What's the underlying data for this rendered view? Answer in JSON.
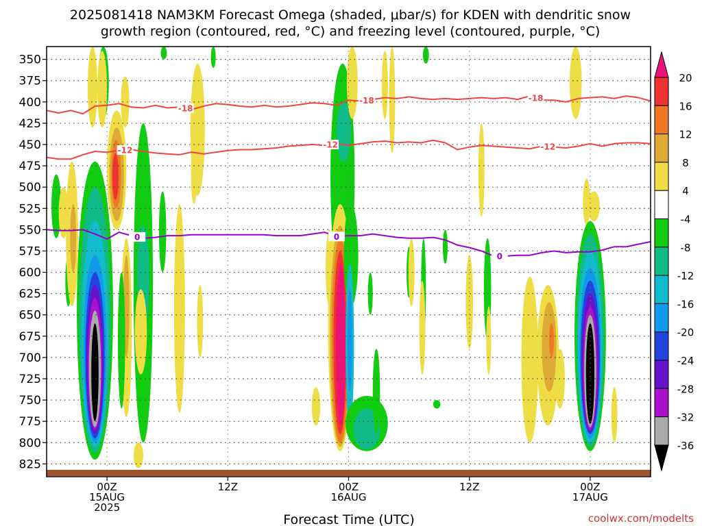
{
  "title": {
    "line1": "2025081418 NAM3KM Forecast Omega (shaded, μbar/s) for KDEN with dendritic snow",
    "line2": "growth region (contoured, red, °C) and freezing level (contoured, purple, °C)"
  },
  "xlabel": "Forecast Time (UTC)",
  "credit": "coolwx.com/modelts",
  "colors": {
    "dgz": "#ee4444",
    "freezing": "#9900cc",
    "ground": "#a0522d"
  },
  "chart_data": {
    "type": "heatmap",
    "title": "2025081418 NAM3KM Forecast Omega (shaded, μbar/s) for KDEN with dendritic snow growth region (contoured, red, °C) and freezing level (contoured, purple, °C)",
    "xlabel": "Forecast Time (UTC)",
    "ylabel": "",
    "x_range_hours": [
      -5,
      45
    ],
    "x_ticks": [
      {
        "hour": 0,
        "label": [
          "00Z",
          "15AUG",
          "2025"
        ]
      },
      {
        "hour": 10,
        "label": [
          "12Z"
        ]
      },
      {
        "hour": 20,
        "label": [
          "00Z",
          "16AUG"
        ]
      },
      {
        "hour": 30,
        "label": [
          "12Z"
        ]
      },
      {
        "hour": 40,
        "label": [
          "00Z",
          "17AUG"
        ]
      }
    ],
    "y_axis": "pressure (mb), inverted",
    "y_ticks": [
      350,
      375,
      400,
      425,
      450,
      475,
      500,
      525,
      550,
      575,
      600,
      625,
      650,
      675,
      700,
      725,
      750,
      775,
      800,
      825
    ],
    "y_range": [
      335,
      840
    ],
    "colorbar": {
      "ticks": [
        20,
        16,
        12,
        8,
        4,
        -4,
        -8,
        -12,
        -16,
        -20,
        -24,
        -28,
        -32,
        -36
      ],
      "bins": [
        {
          "range": ">20",
          "color": "#ee1177"
        },
        {
          "range": "16 to 20",
          "color": "#ee3333"
        },
        {
          "range": "12 to 16",
          "color": "#ee7722"
        },
        {
          "range": "8 to 12",
          "color": "#ddaa33"
        },
        {
          "range": "4 to 8",
          "color": "#eedd44"
        },
        {
          "range": "-4 to 4",
          "color": "#ffffff"
        },
        {
          "range": "-8 to -4",
          "color": "#11cc11"
        },
        {
          "range": "-12 to -8",
          "color": "#11bb88"
        },
        {
          "range": "-16 to -12",
          "color": "#11bbcc"
        },
        {
          "range": "-20 to -16",
          "color": "#1199ee"
        },
        {
          "range": "-24 to -20",
          "color": "#2244dd"
        },
        {
          "range": "-28 to -24",
          "color": "#6611cc"
        },
        {
          "range": "-32 to -28",
          "color": "#aa11cc"
        },
        {
          "range": "-36 to -32",
          "color": "#aaaaaa"
        },
        {
          "range": "<-36",
          "color": "#000000"
        }
      ]
    },
    "contours": [
      {
        "label": "-18",
        "color": "#ee4444",
        "points": [
          [
            -5,
            410
          ],
          [
            -4,
            413
          ],
          [
            -3,
            410
          ],
          [
            -2,
            414
          ],
          [
            -1,
            405
          ],
          [
            0,
            404
          ],
          [
            1,
            402
          ],
          [
            2,
            406
          ],
          [
            3,
            407
          ],
          [
            4,
            404
          ],
          [
            5,
            407
          ],
          [
            6,
            406
          ],
          [
            7,
            409
          ],
          [
            8,
            405
          ],
          [
            9,
            402
          ],
          [
            10,
            403
          ],
          [
            11,
            405
          ],
          [
            12,
            406
          ],
          [
            13,
            404
          ],
          [
            14,
            406
          ],
          [
            15,
            405
          ],
          [
            16,
            403
          ],
          [
            17,
            401
          ],
          [
            18,
            402
          ],
          [
            19,
            404
          ],
          [
            20,
            398
          ],
          [
            21,
            399
          ],
          [
            22,
            397
          ],
          [
            23,
            395
          ],
          [
            24,
            396
          ],
          [
            25,
            394
          ],
          [
            26,
            396
          ],
          [
            27,
            397
          ],
          [
            28,
            396
          ],
          [
            29,
            397
          ],
          [
            30,
            396
          ],
          [
            31,
            395
          ],
          [
            32,
            396
          ],
          [
            33,
            395
          ],
          [
            34,
            397
          ],
          [
            35,
            393
          ],
          [
            36,
            398
          ],
          [
            37,
            398
          ],
          [
            38,
            400
          ],
          [
            39,
            396
          ],
          [
            40,
            395
          ],
          [
            41,
            394
          ],
          [
            42,
            396
          ],
          [
            43,
            393
          ],
          [
            44,
            395
          ],
          [
            45,
            399
          ]
        ],
        "label_hours": [
          6.5,
          21.5,
          35.5
        ]
      },
      {
        "label": "-12",
        "color": "#ee4444",
        "points": [
          [
            -5,
            465
          ],
          [
            -4,
            467
          ],
          [
            -3,
            467
          ],
          [
            -2,
            462
          ],
          [
            -1,
            458
          ],
          [
            0,
            459
          ],
          [
            1,
            457
          ],
          [
            2,
            456
          ],
          [
            3,
            458
          ],
          [
            4,
            460
          ],
          [
            5,
            461
          ],
          [
            6,
            462
          ],
          [
            7,
            459
          ],
          [
            8,
            461
          ],
          [
            9,
            459
          ],
          [
            10,
            457
          ],
          [
            11,
            456
          ],
          [
            12,
            456
          ],
          [
            13,
            455
          ],
          [
            14,
            454
          ],
          [
            15,
            452
          ],
          [
            16,
            451
          ],
          [
            17,
            450
          ],
          [
            18,
            451
          ],
          [
            19,
            449
          ],
          [
            20,
            451
          ],
          [
            21,
            449
          ],
          [
            22,
            447
          ],
          [
            23,
            446
          ],
          [
            24,
            448
          ],
          [
            25,
            447
          ],
          [
            26,
            448
          ],
          [
            27,
            445
          ],
          [
            28,
            448
          ],
          [
            29,
            456
          ],
          [
            30,
            453
          ],
          [
            31,
            451
          ],
          [
            32,
            452
          ],
          [
            33,
            453
          ],
          [
            34,
            454
          ],
          [
            35,
            455
          ],
          [
            36,
            452
          ],
          [
            37,
            453
          ],
          [
            38,
            454
          ],
          [
            39,
            452
          ],
          [
            40,
            449
          ],
          [
            41,
            452
          ],
          [
            42,
            449
          ],
          [
            43,
            448
          ],
          [
            44,
            448
          ],
          [
            45,
            449
          ]
        ],
        "label_hours": [
          1.5,
          18.5,
          36.5
        ]
      },
      {
        "label": "0",
        "color": "#9900cc",
        "points": [
          [
            -5,
            550
          ],
          [
            -4,
            551
          ],
          [
            -3,
            551
          ],
          [
            -2,
            550
          ],
          [
            -1,
            555
          ],
          [
            0,
            561
          ],
          [
            1,
            553
          ],
          [
            2,
            557
          ],
          [
            3,
            560
          ],
          [
            4,
            559
          ],
          [
            5,
            557
          ],
          [
            6,
            557
          ],
          [
            7,
            556
          ],
          [
            8,
            556
          ],
          [
            9,
            556
          ],
          [
            10,
            556
          ],
          [
            11,
            556
          ],
          [
            12,
            556
          ],
          [
            13,
            556
          ],
          [
            14,
            557
          ],
          [
            15,
            557
          ],
          [
            16,
            557
          ],
          [
            17,
            555
          ],
          [
            18,
            553
          ],
          [
            19,
            558
          ],
          [
            20,
            557
          ],
          [
            21,
            557
          ],
          [
            22,
            555
          ],
          [
            23,
            557
          ],
          [
            24,
            559
          ],
          [
            25,
            560
          ],
          [
            26,
            560
          ],
          [
            27,
            559
          ],
          [
            28,
            562
          ],
          [
            29,
            568
          ],
          [
            30,
            571
          ],
          [
            31,
            575
          ],
          [
            32,
            581
          ],
          [
            33,
            581
          ],
          [
            34,
            580
          ],
          [
            35,
            580
          ],
          [
            36,
            577
          ],
          [
            37,
            575
          ],
          [
            38,
            577
          ],
          [
            39,
            576
          ],
          [
            40,
            576
          ],
          [
            41,
            574
          ],
          [
            42,
            570
          ],
          [
            43,
            570
          ],
          [
            44,
            567
          ],
          [
            45,
            564
          ]
        ],
        "label_hours": [
          2.5,
          19.0,
          32.5
        ]
      }
    ],
    "shaded_regions_approx": [
      {
        "value_bin": "<-36",
        "hours": [
          -1.5,
          -0.5
        ],
        "pressure_mb": [
          655,
          780
        ]
      },
      {
        "value_bin": "<-36",
        "hours": [
          39.7,
          40.4
        ],
        "pressure_mb": [
          650,
          780
        ]
      },
      {
        "value_bin": ">20",
        "hours": [
          19.0,
          19.8
        ],
        "pressure_mb": [
          600,
          760
        ]
      },
      {
        "value_bin": ">20",
        "hours": [
          0.4,
          1.0
        ],
        "pressure_mb": [
          465,
          520
        ]
      },
      {
        "value_bin": "-8 to -4",
        "hours": [
          19.0,
          21.0
        ],
        "pressure_mb": [
          360,
          610
        ]
      },
      {
        "value_bin": "-8 to -4",
        "hours": [
          2.2,
          3.8
        ],
        "pressure_mb": [
          430,
          780
        ]
      },
      {
        "value_bin": "4 to 8",
        "hours": [
          2.5,
          3.8
        ],
        "pressure_mb": [
          385,
          600
        ]
      },
      {
        "value_bin": "12 to 16",
        "hours": [
          36.0,
          37.0
        ],
        "pressure_mb": [
          635,
          700
        ]
      }
    ]
  }
}
